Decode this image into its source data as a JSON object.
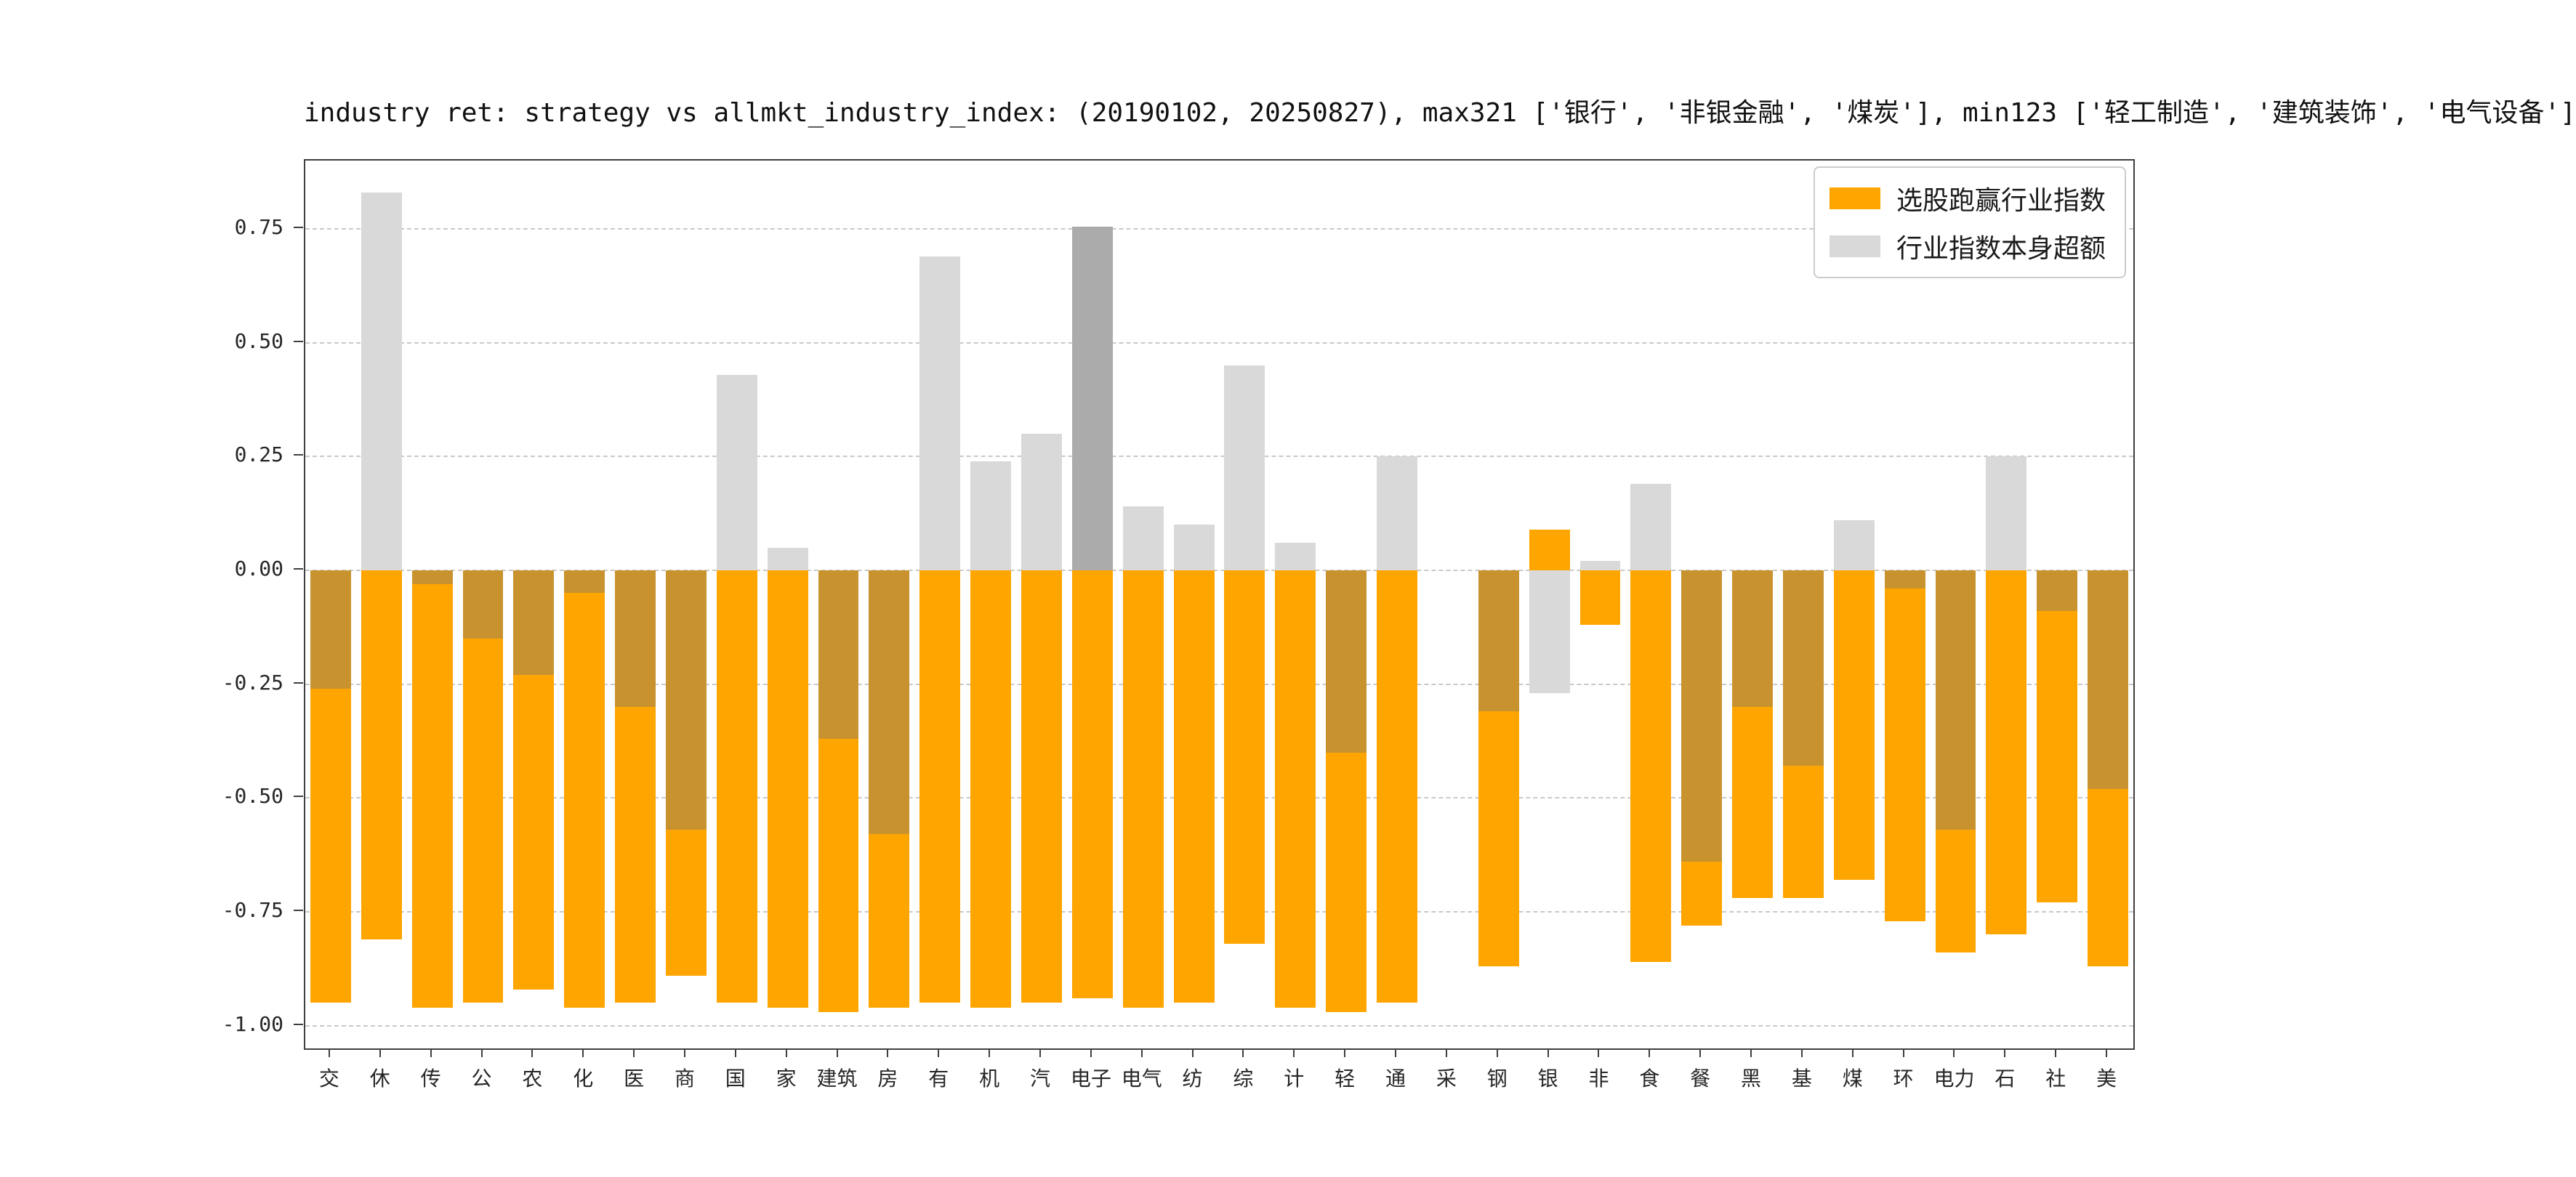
{
  "chart_data": {
    "type": "bar",
    "title": "industry ret: strategy vs allmkt_industry_index: (20190102, 20250827), max321 ['银行', '非银金融', '煤炭'], min123 ['轻工制造', '建筑装饰', '电气设备']",
    "categories": [
      "交",
      "休",
      "传",
      "公",
      "农",
      "化",
      "医",
      "商",
      "国",
      "家",
      "建筑",
      "房",
      "有",
      "机",
      "汽",
      "电子",
      "电气",
      "纺",
      "综",
      "计",
      "轻",
      "通",
      "采",
      "钢",
      "银",
      "非",
      "食",
      "餐",
      "黑",
      "基",
      "煤",
      "环",
      "电力",
      "石",
      "社",
      "美"
    ],
    "series": [
      {
        "name": "选股跑赢行业指数",
        "color": "#ffa500",
        "values": [
          -0.95,
          -0.81,
          -0.96,
          -0.95,
          -0.92,
          -0.96,
          -0.95,
          -0.89,
          -0.95,
          -0.96,
          -0.97,
          -0.96,
          -0.95,
          -0.96,
          -0.95,
          -0.94,
          -0.96,
          -0.95,
          -0.82,
          -0.96,
          -0.97,
          -0.95,
          null,
          -0.87,
          0.09,
          -0.12,
          -0.86,
          -0.78,
          -0.72,
          -0.72,
          -0.68,
          -0.77,
          -0.84,
          -0.8,
          -0.73,
          -0.87
        ]
      },
      {
        "name": "行业指数本身超额",
        "color": "#d9d9d9",
        "values": [
          -0.26,
          0.83,
          -0.03,
          -0.15,
          -0.23,
          -0.05,
          -0.3,
          -0.57,
          0.43,
          0.05,
          -0.37,
          -0.58,
          0.69,
          0.24,
          0.3,
          0.755,
          0.14,
          0.1,
          0.45,
          0.06,
          -0.4,
          0.25,
          null,
          -0.31,
          -0.27,
          0.02,
          0.19,
          -0.64,
          -0.3,
          -0.43,
          0.11,
          -0.04,
          -0.57,
          0.25,
          -0.09,
          -0.48
        ]
      }
    ],
    "overlap_color": "#c8932f",
    "gray_dark": {
      "index": 15,
      "color": "#ababab"
    },
    "ylim": [
      -1.05,
      0.9
    ],
    "yticks": [
      -1.0,
      -0.75,
      -0.5,
      -0.25,
      0.0,
      0.25,
      0.5,
      0.75
    ],
    "ytick_labels": [
      "-1.00",
      "-0.75",
      "-0.50",
      "-0.25",
      "0.00",
      "0.25",
      "0.50",
      "0.75"
    ],
    "grid": "dashed-horizontal",
    "legend_position": "upper-right",
    "bar_width_frac": 0.8
  }
}
